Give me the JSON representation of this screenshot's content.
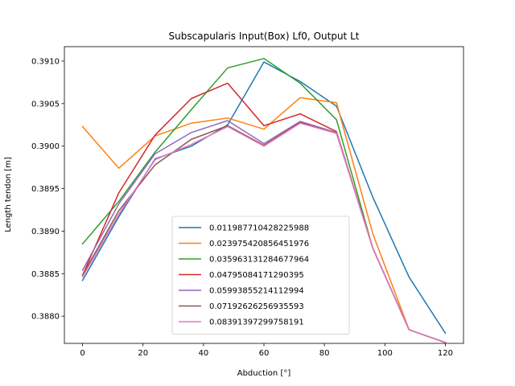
{
  "chart_data": {
    "type": "line",
    "title": "Subscapularis Input(Box) Lf0, Output Lt",
    "xlabel": "Abduction [°]",
    "ylabel": "Length tendon [m]",
    "xlim": [
      -6,
      126
    ],
    "ylim": [
      0.38768,
      0.39117
    ],
    "xticks": [
      0,
      20,
      40,
      60,
      80,
      100,
      120
    ],
    "yticks": [
      0.388,
      0.3885,
      0.389,
      0.3895,
      0.39,
      0.3905,
      0.391
    ],
    "ytick_labels": [
      "0.3880",
      "0.3885",
      "0.3890",
      "0.3895",
      "0.3900",
      "0.3905",
      "0.3910"
    ],
    "grid": false,
    "legend_position": "lower center",
    "x": [
      0,
      12,
      24,
      36,
      48,
      60,
      72,
      84,
      96,
      108,
      120
    ],
    "series": [
      {
        "name": "0.011987710428225988",
        "color": "#1f77b4",
        "values": [
          0.38842,
          0.38917,
          0.38985,
          0.39,
          0.39025,
          0.39099,
          0.39076,
          0.39047,
          0.3894,
          0.38846,
          0.3878
        ]
      },
      {
        "name": "0.023975420856451976",
        "color": "#ff7f0e",
        "values": [
          0.39023,
          0.38974,
          0.39012,
          0.39027,
          0.39033,
          0.3902,
          0.39057,
          0.39051,
          0.38897,
          0.38784,
          0.38769
        ]
      },
      {
        "name": "0.035963131284677964",
        "color": "#2ca02c",
        "values": [
          0.38885,
          0.38935,
          0.38993,
          0.39043,
          0.39092,
          0.39103,
          0.39074,
          0.39031,
          0.3888,
          0.38784,
          0.38769
        ]
      },
      {
        "name": "0.04795084171290395",
        "color": "#d62728",
        "values": [
          0.38848,
          0.38945,
          0.39013,
          0.39056,
          0.39074,
          0.39024,
          0.39038,
          0.39017,
          0.3888,
          0.38784,
          0.38769
        ]
      },
      {
        "name": "0.05993855214112994",
        "color": "#9467bd",
        "values": [
          0.38854,
          0.38932,
          0.38991,
          0.39016,
          0.3903,
          0.39003,
          0.39029,
          0.39016,
          0.3888,
          0.38784,
          0.38769
        ]
      },
      {
        "name": "0.07192626256935593",
        "color": "#8c564b",
        "values": [
          0.38848,
          0.38924,
          0.38978,
          0.39008,
          0.39024,
          0.39001,
          0.39028,
          0.39015,
          0.3888,
          0.38784,
          0.38769
        ]
      },
      {
        "name": "0.08391397299758191",
        "color": "#e377c2",
        "values": [
          0.38846,
          0.3892,
          0.38984,
          0.39002,
          0.39023,
          0.39,
          0.39027,
          0.39015,
          0.3888,
          0.38784,
          0.38769
        ]
      }
    ]
  }
}
